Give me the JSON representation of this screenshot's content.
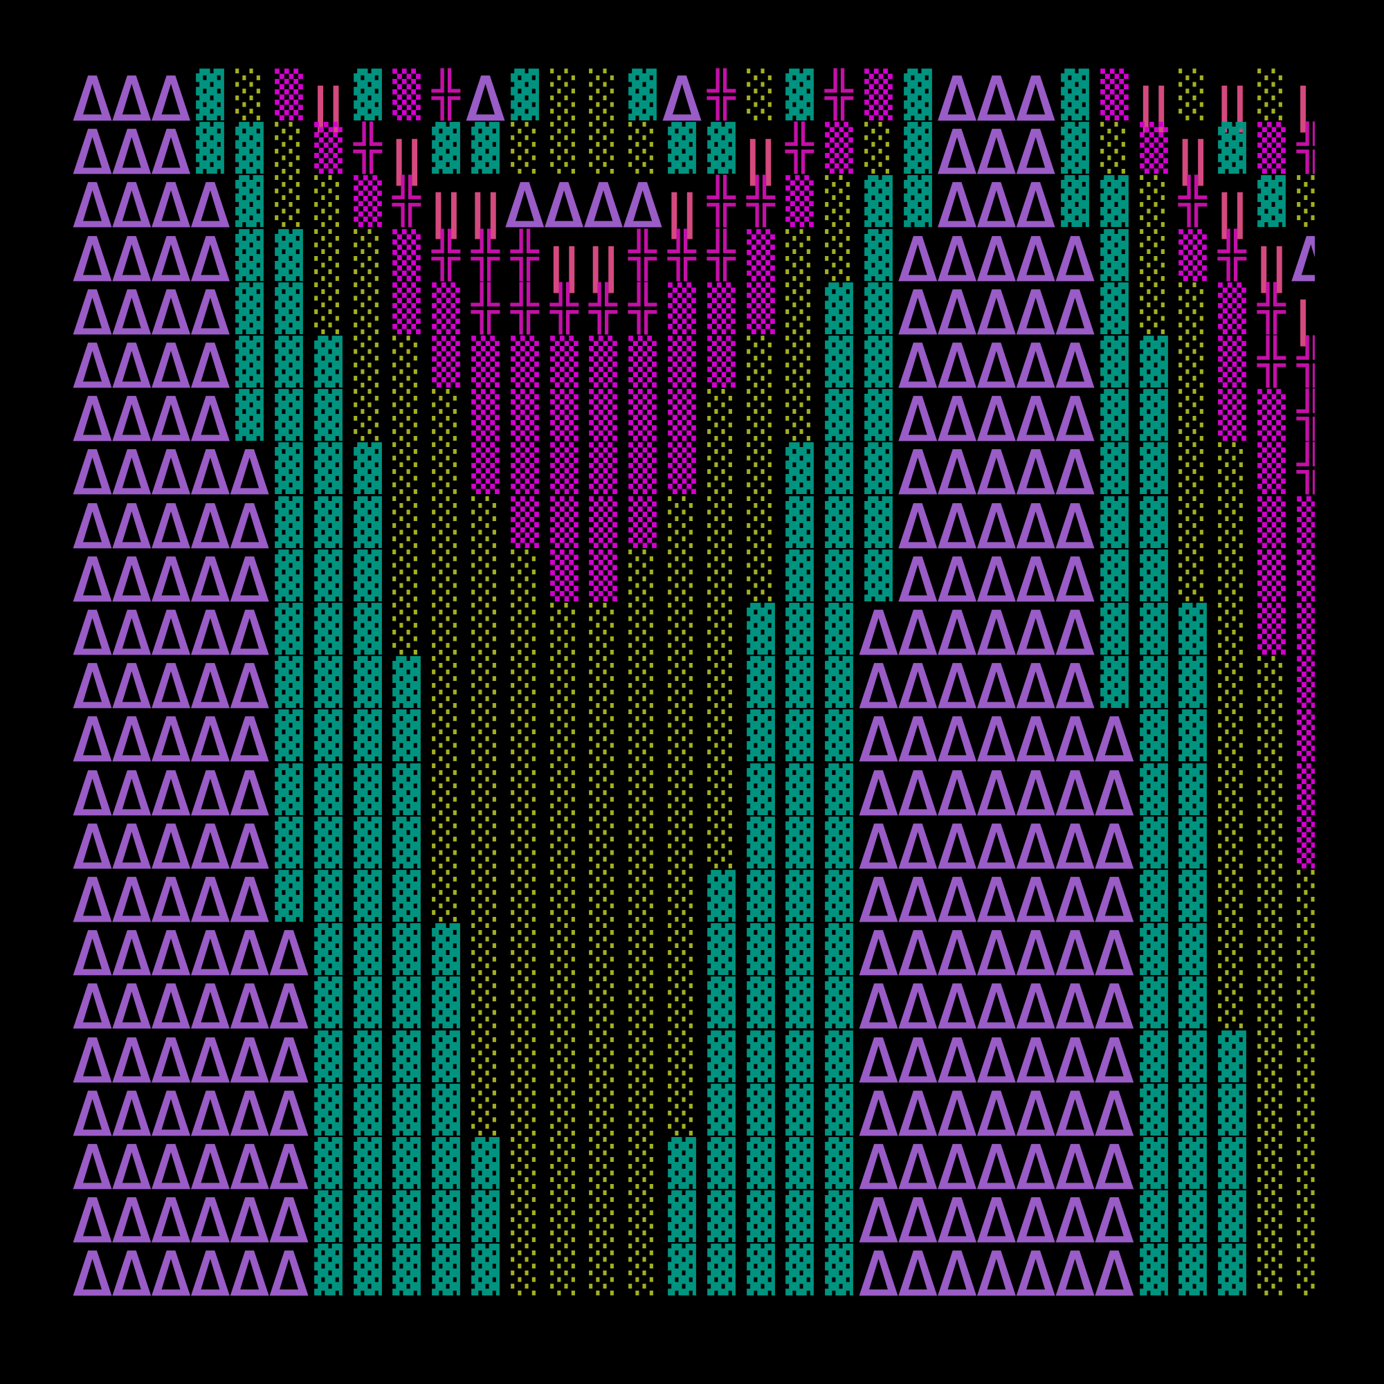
{
  "art": {
    "rows": [
      "ΔΔΔ▓░▒‖▓▒╬Δ▓░░▓Δ╬░▓╬▒▓ΔΔΔ▓▒‖░‖░‖",
      "ΔΔΔ▓▓░▒╬‖▓▓░░░░▓▓‖╬▒░▓ΔΔΔ▓░▒‖▓▒╬",
      "ΔΔΔΔ▓░░▒╬‖‖ΔΔΔΔ‖╬╬▒░▓▓ΔΔΔ▓▓░╬‖▓░",
      "ΔΔΔΔ▓▓░░▒╬╬╬‖‖╬╬╬▒░░▓ΔΔΔΔΔ▓░▒╬‖Δ",
      "ΔΔΔΔ▓▓░░▒▒╬╬╬╬╬▒▒▒░▓▓ΔΔΔΔΔ▓░░▒╬‖",
      "ΔΔΔΔ▓▓▓░░▒▒▒▒▒▒▒▒░░▓▓ΔΔΔΔΔ▓▓░▒╬╬",
      "ΔΔΔΔ▓▓▓░░░▒▒▒▒▒▒░░░▓▓ΔΔΔΔΔ▓▓░▒▒╬",
      "ΔΔΔΔΔ▓▓▓░░▒▒▒▒▒▒░░▓▓▓ΔΔΔΔΔ▓▓░░▒╬",
      "ΔΔΔΔΔ▓▓▓░░░▒▒▒▒░░░▓▓▓ΔΔΔΔΔ▓▓░░▒▒",
      "ΔΔΔΔΔ▓▓▓░░░░▒▒░░░░▓▓▓ΔΔΔΔΔ▓▓░░▒▒",
      "ΔΔΔΔΔ▓▓▓░░░░░░░░░▓▓▓ΔΔΔΔΔΔ▓▓▓░▒▒",
      "ΔΔΔΔΔ▓▓▓▓░░░░░░░░▓▓▓ΔΔΔΔΔΔ▓▓▓░░▒",
      "ΔΔΔΔΔ▓▓▓▓░░░░░░░░▓▓▓ΔΔΔΔΔΔΔ▓▓░░▒",
      "ΔΔΔΔΔ▓▓▓▓░░░░░░░░▓▓▓ΔΔΔΔΔΔΔ▓▓░░▒",
      "ΔΔΔΔΔ▓▓▓▓░░░░░░░░▓▓▓ΔΔΔΔΔΔΔ▓▓░░▒",
      "ΔΔΔΔΔ▓▓▓▓░░░░░░░▓▓▓▓ΔΔΔΔΔΔΔ▓▓░░░",
      "ΔΔΔΔΔΔ▓▓▓▓░░░░░░▓▓▓▓ΔΔΔΔΔΔΔ▓▓░░░",
      "ΔΔΔΔΔΔ▓▓▓▓░░░░░░▓▓▓▓ΔΔΔΔΔΔΔ▓▓░░░",
      "ΔΔΔΔΔΔ▓▓▓▓░░░░░░▓▓▓▓ΔΔΔΔΔΔΔ▓▓▓░░",
      "ΔΔΔΔΔΔ▓▓▓▓░░░░░░▓▓▓▓ΔΔΔΔΔΔΔ▓▓▓░░",
      "ΔΔΔΔΔΔ▓▓▓▓▓░░░░▓▓▓▓▓ΔΔΔΔΔΔΔ▓▓▓░░",
      "ΔΔΔΔΔΔ▓▓▓▓▓░░░░▓▓▓▓▓ΔΔΔΔΔΔΔ▓▓▓░░",
      "ΔΔΔΔΔΔ▓▓▓▓▓░░░░▓▓▓▓▓ΔΔΔΔΔΔΔ▓▓▓░░"
    ]
  },
  "glyph_colors": {
    "Δ": "#9a5cc6",
    "▓": "#009480",
    "░": "#a3b021",
    "▒": "#d400d0",
    "╬": "#c410a8",
    "‖": "#d44a7e"
  },
  "background": "#000000"
}
